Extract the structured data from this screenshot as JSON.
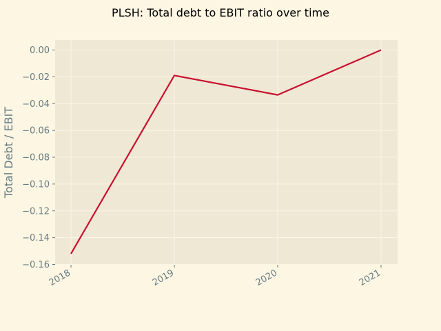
{
  "chart_data": {
    "type": "line",
    "title": "PLSH: Total debt to EBIT ratio over time",
    "xlabel": "",
    "ylabel": "Total Debt / EBIT",
    "x": [
      "2018",
      "2019",
      "2020",
      "2021"
    ],
    "series": [
      {
        "values": [
          -0.152,
          -0.019,
          -0.0335,
          0.0
        ]
      }
    ],
    "ylim": [
      -0.16,
      0.0
    ],
    "yticks": [
      0.0,
      -0.02,
      -0.04,
      -0.06,
      -0.08,
      -0.1,
      -0.12,
      -0.14,
      -0.16
    ],
    "ytick_labels": [
      "0.00",
      "−0.02",
      "−0.04",
      "−0.06",
      "−0.08",
      "−0.10",
      "−0.12",
      "−0.14",
      "−0.16"
    ],
    "grid": true,
    "legend": "none"
  },
  "colors": {
    "page_background": "#fdf6e3",
    "plot_background": "#eee8d5",
    "grid": "#fdf6e3",
    "line": "#c8102e",
    "tick_text": "#657b83"
  }
}
